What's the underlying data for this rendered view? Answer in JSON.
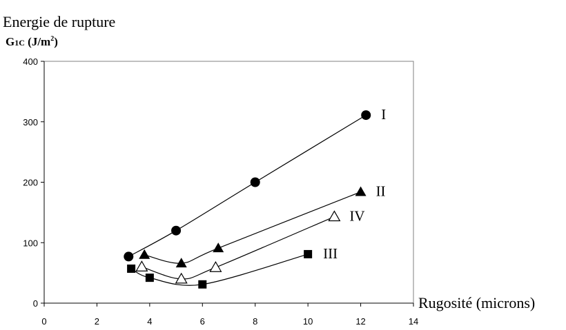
{
  "chart_data": {
    "type": "line",
    "title_line1": "Energie de rupture",
    "ylabel_main": "G",
    "ylabel_sub": "1C",
    "ylabel_unit_prefix": " (J/m",
    "ylabel_unit_sup": "2",
    "ylabel_unit_suffix": ")",
    "xlabel": "Rugosité (microns)",
    "xlim": [
      0,
      14
    ],
    "ylim": [
      0,
      400
    ],
    "xticks": [
      "0",
      "2",
      "4",
      "6",
      "8",
      "10",
      "12",
      "14"
    ],
    "yticks": [
      "0",
      "100",
      "200",
      "300",
      "400"
    ],
    "grid": false,
    "series": [
      {
        "name": "I",
        "marker": "circle",
        "x": [
          3.2,
          5.0,
          8.0,
          12.2
        ],
        "y": [
          77,
          120,
          200,
          311
        ]
      },
      {
        "name": "II",
        "marker": "triangle",
        "x": [
          3.8,
          5.2,
          6.6,
          12.0
        ],
        "y": [
          80,
          66,
          91,
          184
        ]
      },
      {
        "name": "IV",
        "marker": "open-triangle",
        "x": [
          3.7,
          5.2,
          6.5,
          11.0
        ],
        "y": [
          60,
          40,
          59,
          143
        ]
      },
      {
        "name": "III",
        "marker": "square",
        "x": [
          3.3,
          4.0,
          6.0,
          10.0
        ],
        "y": [
          57,
          42,
          31,
          81
        ]
      }
    ]
  }
}
